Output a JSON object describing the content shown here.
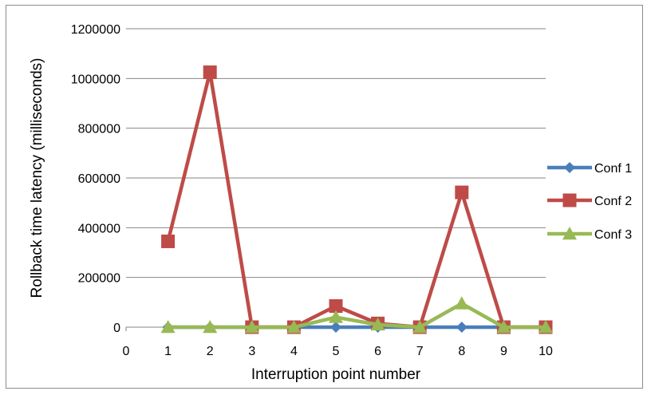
{
  "chart_data": {
    "type": "line",
    "title": "",
    "xlabel": "Interruption point number",
    "ylabel": "Rollback time latency (milliseconds)",
    "x_ticks": [
      "0",
      "1",
      "2",
      "3",
      "4",
      "5",
      "6",
      "7",
      "8",
      "9",
      "10"
    ],
    "y_ticks": [
      "0",
      "200000",
      "400000",
      "600000",
      "800000",
      "1000000",
      "1200000"
    ],
    "xlim": [
      0,
      10
    ],
    "ylim": [
      0,
      1200000
    ],
    "grid": "horizontal",
    "legend_position": "right",
    "x": [
      1,
      2,
      3,
      4,
      5,
      6,
      7,
      8,
      9,
      10
    ],
    "series": [
      {
        "name": "Conf 1",
        "color": "#4a7ebb",
        "marker": "diamond",
        "values": [
          0,
          0,
          0,
          0,
          0,
          0,
          0,
          0,
          0,
          0
        ]
      },
      {
        "name": "Conf 2",
        "color": "#be4b48",
        "marker": "square",
        "values": [
          345000,
          1025000,
          0,
          0,
          85000,
          15000,
          0,
          542000,
          0,
          0
        ]
      },
      {
        "name": "Conf 3",
        "color": "#98b954",
        "marker": "triangle",
        "values": [
          0,
          0,
          0,
          0,
          40000,
          10000,
          0,
          95000,
          0,
          0
        ]
      }
    ]
  }
}
